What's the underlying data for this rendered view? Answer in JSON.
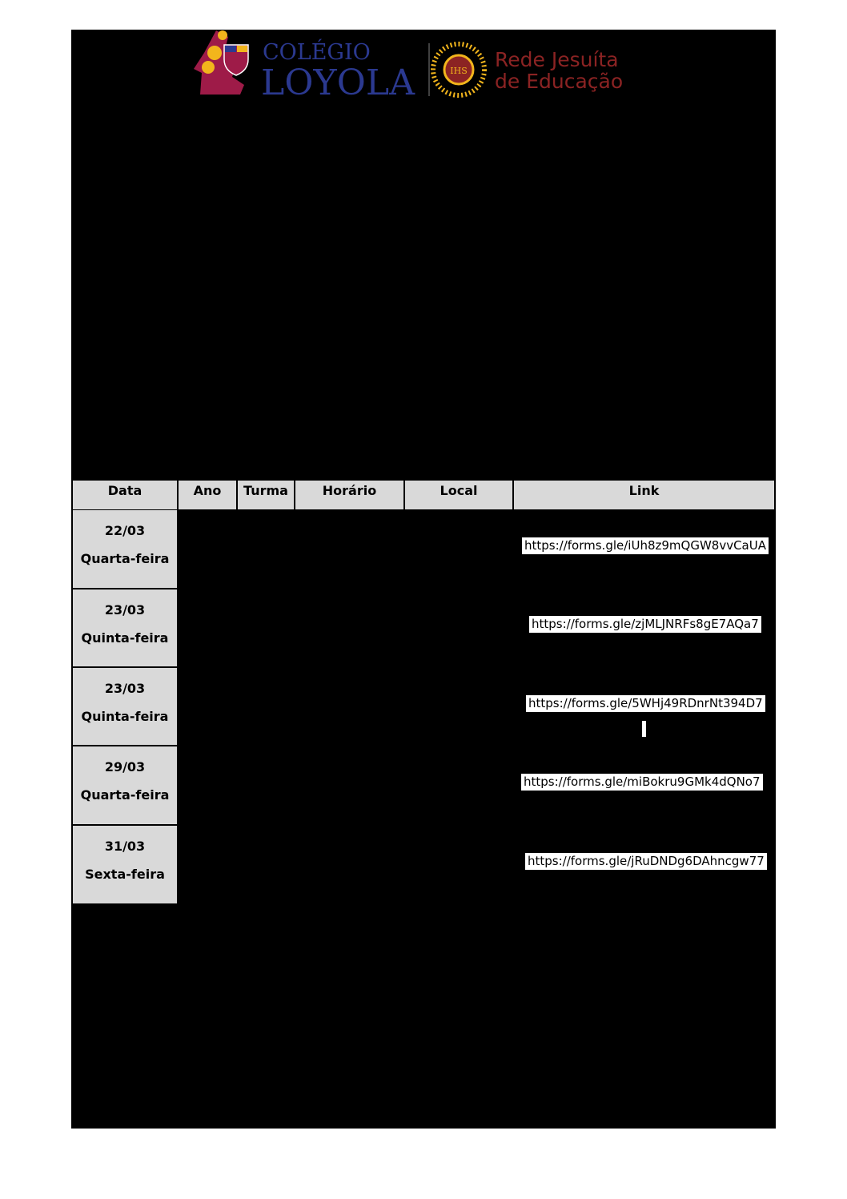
{
  "header": {
    "logo_left_line1": "COLÉGIO",
    "logo_left_line2": "LOYOLA",
    "logo_right_line1": "Rede Jesuíta",
    "logo_right_line2": "de Educação",
    "seal_text": "IHS",
    "colors": {
      "loyola_blue": "#2b3990",
      "rede_red": "#8b2323",
      "gold": "#f2b51c",
      "maroon": "#9e1b48"
    }
  },
  "table": {
    "headers": [
      "Data",
      "Ano",
      "Turma",
      "Horário",
      "Local",
      "Link"
    ],
    "rows": [
      {
        "date": "22/03",
        "weekday": "Quarta-feira",
        "link": "https://forms.gle/iUh8z9mQGW8vvCaUA"
      },
      {
        "date": "23/03",
        "weekday": "Quinta-feira",
        "link": "https://forms.gle/zjMLJNRFs8gE7AQa7"
      },
      {
        "date": "23/03",
        "weekday": "Quinta-feira",
        "link": "https://forms.gle/5WHj49RDnrNt394D7"
      },
      {
        "date": "29/03",
        "weekday": "Quarta-feira",
        "link": "https://forms.gle/miBokru9GMk4dQNo7"
      },
      {
        "date": "31/03",
        "weekday": "Sexta-feira",
        "link": "https://forms.gle/jRuDNDg6DAhncgw77"
      }
    ]
  }
}
